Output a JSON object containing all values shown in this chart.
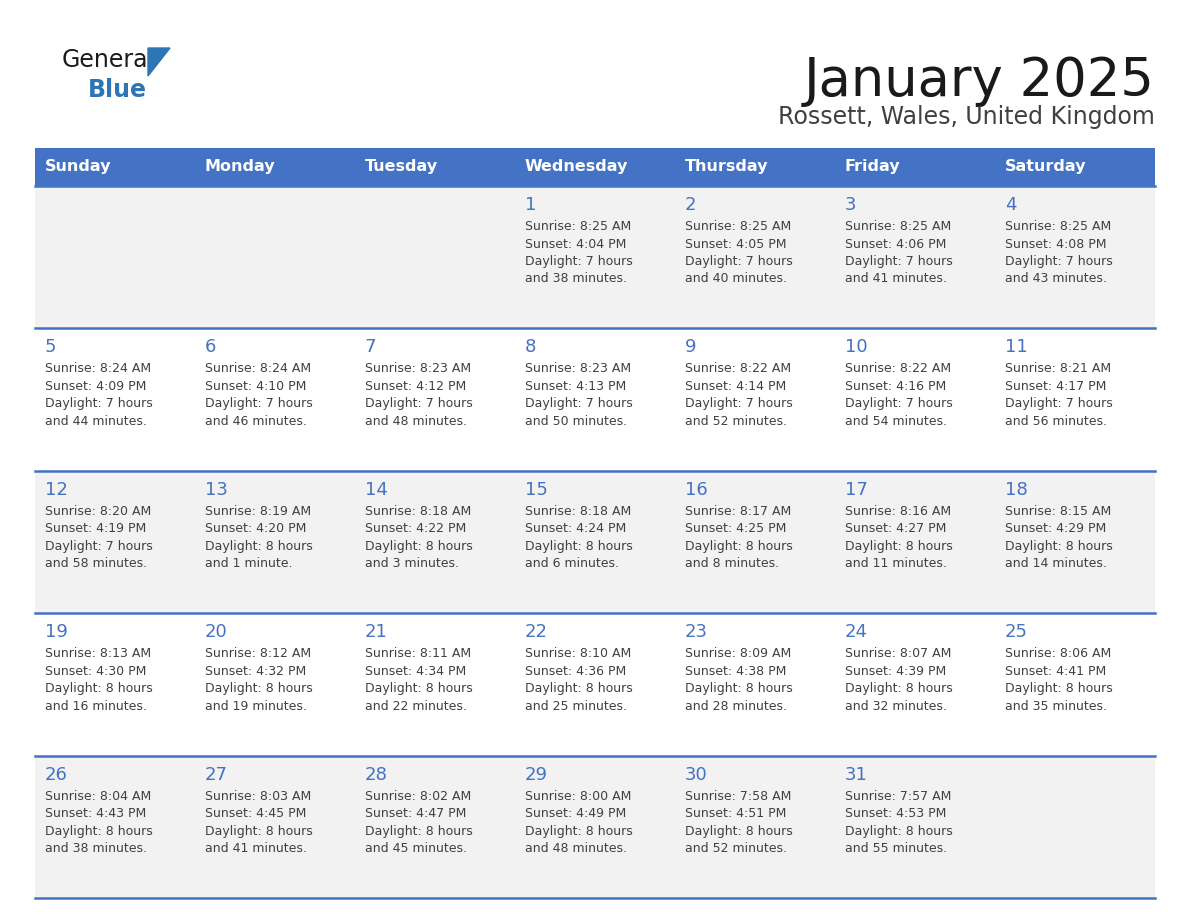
{
  "title": "January 2025",
  "subtitle": "Rossett, Wales, United Kingdom",
  "days_of_week": [
    "Sunday",
    "Monday",
    "Tuesday",
    "Wednesday",
    "Thursday",
    "Friday",
    "Saturday"
  ],
  "header_bg": "#4472C4",
  "header_text": "#FFFFFF",
  "cell_bg_light": "#F2F2F2",
  "cell_bg_white": "#FFFFFF",
  "day_num_color": "#4472C4",
  "text_color": "#404040",
  "border_color": "#4472C4",
  "calendar_data": [
    [
      null,
      null,
      null,
      {
        "day": 1,
        "sunrise": "8:25 AM",
        "sunset": "4:04 PM",
        "daylight": "7 hours and 38 minutes."
      },
      {
        "day": 2,
        "sunrise": "8:25 AM",
        "sunset": "4:05 PM",
        "daylight": "7 hours and 40 minutes."
      },
      {
        "day": 3,
        "sunrise": "8:25 AM",
        "sunset": "4:06 PM",
        "daylight": "7 hours and 41 minutes."
      },
      {
        "day": 4,
        "sunrise": "8:25 AM",
        "sunset": "4:08 PM",
        "daylight": "7 hours and 43 minutes."
      }
    ],
    [
      {
        "day": 5,
        "sunrise": "8:24 AM",
        "sunset": "4:09 PM",
        "daylight": "7 hours and 44 minutes."
      },
      {
        "day": 6,
        "sunrise": "8:24 AM",
        "sunset": "4:10 PM",
        "daylight": "7 hours and 46 minutes."
      },
      {
        "day": 7,
        "sunrise": "8:23 AM",
        "sunset": "4:12 PM",
        "daylight": "7 hours and 48 minutes."
      },
      {
        "day": 8,
        "sunrise": "8:23 AM",
        "sunset": "4:13 PM",
        "daylight": "7 hours and 50 minutes."
      },
      {
        "day": 9,
        "sunrise": "8:22 AM",
        "sunset": "4:14 PM",
        "daylight": "7 hours and 52 minutes."
      },
      {
        "day": 10,
        "sunrise": "8:22 AM",
        "sunset": "4:16 PM",
        "daylight": "7 hours and 54 minutes."
      },
      {
        "day": 11,
        "sunrise": "8:21 AM",
        "sunset": "4:17 PM",
        "daylight": "7 hours and 56 minutes."
      }
    ],
    [
      {
        "day": 12,
        "sunrise": "8:20 AM",
        "sunset": "4:19 PM",
        "daylight": "7 hours and 58 minutes."
      },
      {
        "day": 13,
        "sunrise": "8:19 AM",
        "sunset": "4:20 PM",
        "daylight": "8 hours and 1 minute."
      },
      {
        "day": 14,
        "sunrise": "8:18 AM",
        "sunset": "4:22 PM",
        "daylight": "8 hours and 3 minutes."
      },
      {
        "day": 15,
        "sunrise": "8:18 AM",
        "sunset": "4:24 PM",
        "daylight": "8 hours and 6 minutes."
      },
      {
        "day": 16,
        "sunrise": "8:17 AM",
        "sunset": "4:25 PM",
        "daylight": "8 hours and 8 minutes."
      },
      {
        "day": 17,
        "sunrise": "8:16 AM",
        "sunset": "4:27 PM",
        "daylight": "8 hours and 11 minutes."
      },
      {
        "day": 18,
        "sunrise": "8:15 AM",
        "sunset": "4:29 PM",
        "daylight": "8 hours and 14 minutes."
      }
    ],
    [
      {
        "day": 19,
        "sunrise": "8:13 AM",
        "sunset": "4:30 PM",
        "daylight": "8 hours and 16 minutes."
      },
      {
        "day": 20,
        "sunrise": "8:12 AM",
        "sunset": "4:32 PM",
        "daylight": "8 hours and 19 minutes."
      },
      {
        "day": 21,
        "sunrise": "8:11 AM",
        "sunset": "4:34 PM",
        "daylight": "8 hours and 22 minutes."
      },
      {
        "day": 22,
        "sunrise": "8:10 AM",
        "sunset": "4:36 PM",
        "daylight": "8 hours and 25 minutes."
      },
      {
        "day": 23,
        "sunrise": "8:09 AM",
        "sunset": "4:38 PM",
        "daylight": "8 hours and 28 minutes."
      },
      {
        "day": 24,
        "sunrise": "8:07 AM",
        "sunset": "4:39 PM",
        "daylight": "8 hours and 32 minutes."
      },
      {
        "day": 25,
        "sunrise": "8:06 AM",
        "sunset": "4:41 PM",
        "daylight": "8 hours and 35 minutes."
      }
    ],
    [
      {
        "day": 26,
        "sunrise": "8:04 AM",
        "sunset": "4:43 PM",
        "daylight": "8 hours and 38 minutes."
      },
      {
        "day": 27,
        "sunrise": "8:03 AM",
        "sunset": "4:45 PM",
        "daylight": "8 hours and 41 minutes."
      },
      {
        "day": 28,
        "sunrise": "8:02 AM",
        "sunset": "4:47 PM",
        "daylight": "8 hours and 45 minutes."
      },
      {
        "day": 29,
        "sunrise": "8:00 AM",
        "sunset": "4:49 PM",
        "daylight": "8 hours and 48 minutes."
      },
      {
        "day": 30,
        "sunrise": "7:58 AM",
        "sunset": "4:51 PM",
        "daylight": "8 hours and 52 minutes."
      },
      {
        "day": 31,
        "sunrise": "7:57 AM",
        "sunset": "4:53 PM",
        "daylight": "8 hours and 55 minutes."
      },
      null
    ]
  ],
  "logo_color_general": "#1a1a1a",
  "logo_color_blue": "#2E75B6",
  "logo_triangle_color": "#2E75B6"
}
